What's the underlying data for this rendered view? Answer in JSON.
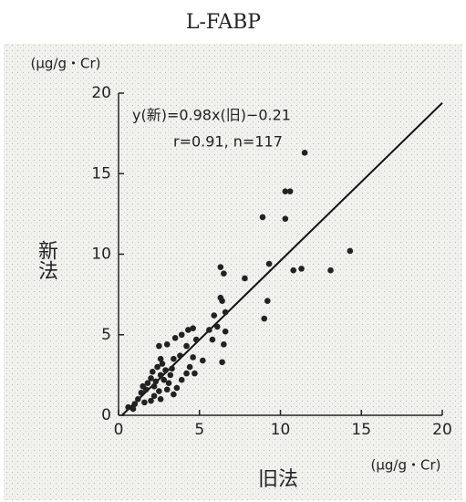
{
  "chart_data": {
    "type": "scatter",
    "title": "L-FABP",
    "x_label": "旧法",
    "y_label": "新法",
    "x_unit": "(μg/g・Cr)",
    "y_unit": "(μg/g・Cr)",
    "annotation": [
      "y(新)=0.98x(旧)−0.21",
      "r=0.91, n=117"
    ],
    "xlim": [
      0,
      20
    ],
    "ylim": [
      0,
      20
    ],
    "xticks": [
      0,
      5,
      10,
      15,
      20
    ],
    "yticks": [
      0,
      5,
      10,
      15,
      20
    ],
    "color": "#222222",
    "regression": {
      "x": [
        0.21,
        20
      ],
      "y": [
        0,
        19.39
      ]
    },
    "x": [
      11.5,
      10.3,
      10.6,
      8.9,
      10.3,
      14.3,
      9.3,
      10.8,
      11.3,
      13.1,
      6.3,
      6.5,
      7.8,
      6.3,
      6.4,
      9.2,
      9.0,
      5.9,
      6.6,
      6.1,
      6.6,
      5.6,
      6.5,
      6.4,
      5.8,
      4.3,
      4.6,
      3.9,
      3.5,
      4.8,
      4.2,
      3.0,
      2.5,
      3.4,
      3.8,
      4.6,
      5.2,
      4.4,
      4.2,
      4.7,
      3.9,
      3.2,
      2.7,
      2.4,
      2.1,
      2.6,
      2.0,
      1.8,
      2.3,
      2.8,
      3.1,
      3.0,
      2.5,
      1.7,
      1.4,
      1.2,
      2.2,
      3.4,
      2.6,
      1.6,
      1.0,
      0.6,
      0.9,
      2.0,
      3.6,
      2.9,
      1.5,
      2.2,
      3.3,
      2.6
    ],
    "y": [
      16.3,
      13.9,
      13.9,
      12.3,
      12.2,
      10.2,
      9.4,
      9.0,
      9.1,
      9.0,
      9.2,
      8.8,
      8.5,
      7.3,
      7.1,
      7.1,
      6.0,
      6.2,
      6.4,
      5.5,
      5.2,
      5.3,
      4.4,
      3.3,
      4.7,
      5.3,
      5.4,
      5.0,
      4.8,
      4.7,
      4.3,
      4.4,
      4.3,
      3.5,
      3.7,
      3.6,
      3.4,
      3.0,
      2.6,
      2.6,
      2.2,
      2.5,
      3.2,
      3.0,
      2.7,
      2.5,
      2.3,
      2.0,
      2.1,
      2.2,
      2.0,
      1.6,
      1.5,
      1.6,
      1.4,
      1.0,
      1.2,
      1.3,
      1.0,
      0.8,
      0.7,
      0.5,
      0.4,
      0.9,
      1.7,
      2.8,
      1.8,
      1.8,
      2.9,
      3.5
    ]
  }
}
